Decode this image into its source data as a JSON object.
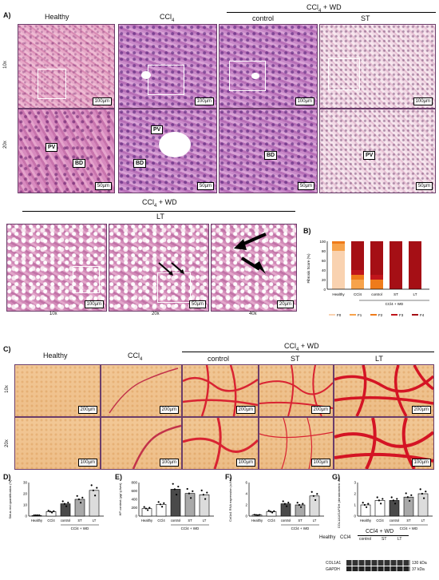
{
  "panelA": {
    "label": "A)",
    "col_headers": [
      "Healthy",
      "CCl",
      "control",
      "ST"
    ],
    "ccl_sub": "4",
    "wd_group": "CCl",
    "wd_suffix": " + WD",
    "row_labels": [
      "10x",
      "20x"
    ],
    "scalebars_10x": [
      "100µm",
      "100µm",
      "100µm",
      "100µm"
    ],
    "scalebars_20x": [
      "50µm",
      "50µm",
      "50µm",
      "50µm"
    ],
    "tags": {
      "pv": "PV",
      "bd": "BD"
    }
  },
  "panelLT": {
    "group": "CCl",
    "group_suffix": " + WD",
    "title": "LT",
    "mag_labels": [
      "10x",
      "20x",
      "40x"
    ],
    "scalebars": [
      "100µm",
      "50µm",
      "20µm"
    ]
  },
  "panelB": {
    "label": "B)",
    "ylabel": "Fibrosis Score (%)",
    "yticks": [
      "100",
      "80",
      "60",
      "40",
      "20",
      "0"
    ],
    "xlabels": [
      "Healthy",
      "CCl4",
      "control",
      "ST",
      "LT"
    ],
    "wd_label": "CCl4 + WD",
    "legend": [
      "F0",
      "F1",
      "F2",
      "F3",
      "F4"
    ],
    "colors": [
      "#f9d2b0",
      "#f7a34b",
      "#ef7b1a",
      "#c0151b",
      "#a50f15"
    ]
  },
  "panelC": {
    "label": "C)",
    "col_headers": [
      "Healthy",
      "CCl",
      "control",
      "ST",
      "LT"
    ],
    "wd_group": "CCl",
    "wd_suffix": " + WD",
    "row_labels": [
      "10x",
      "20x"
    ],
    "scalebars_10x": [
      "200µm",
      "200µm",
      "200µm",
      "200µm",
      "200µm"
    ],
    "scalebars_20x": [
      "100µm",
      "100µm",
      "100µm",
      "100µm",
      "100µm"
    ]
  },
  "panelD": {
    "label": "D)",
    "ylabel": "Sirius red quantification (%)",
    "xlabels": [
      "Healthy",
      "CCl4",
      "control",
      "ST",
      "LT"
    ],
    "group": "CCl4 + WD",
    "yticks": [
      "30",
      "20",
      "10",
      "0"
    ]
  },
  "panelE": {
    "label": "E)",
    "ylabel": "HP content (µg/ g liver)",
    "xlabels": [
      "Healthy",
      "CCl4",
      "control",
      "ST",
      "LT"
    ],
    "group": "CCl4 + WD",
    "yticks": [
      "800",
      "600",
      "400",
      "200",
      "0"
    ]
  },
  "panelF": {
    "label": "F)",
    "ylabel": "Col1a1 RNA expression (x-fold)",
    "xlabels": [
      "Healthy",
      "CCl4",
      "control",
      "ST",
      "LT"
    ],
    "group": "CCl4 + WD",
    "yticks": [
      "6",
      "4",
      "2",
      "0"
    ]
  },
  "panelG": {
    "label": "G)",
    "ylabel": "COL1A1/GAPDH (densitometric units %)",
    "xlabels": [
      "Healthy",
      "CCl4",
      "control",
      "ST",
      "LT"
    ],
    "group": "CCl4 + WD",
    "yticks": [
      "3",
      "2",
      "1",
      "0"
    ],
    "blot_rows": [
      "COL1A1",
      "GAPDH"
    ],
    "blot_kda": [
      "130 kDa",
      "37 kDa"
    ]
  },
  "chart_data": [
    {
      "type": "bar",
      "title": "B) Fibrosis Score",
      "categories": [
        "Healthy",
        "CCl4",
        "control",
        "ST",
        "LT"
      ],
      "ylabel": "Fibrosis Score (%)",
      "ylim": [
        0,
        100
      ],
      "series": [
        {
          "name": "F0",
          "values": [
            80,
            0,
            0,
            0,
            0
          ]
        },
        {
          "name": "F1",
          "values": [
            15,
            20,
            0,
            0,
            0
          ]
        },
        {
          "name": "F2",
          "values": [
            5,
            10,
            20,
            0,
            0
          ]
        },
        {
          "name": "F3",
          "values": [
            0,
            10,
            10,
            0,
            0
          ]
        },
        {
          "name": "F4",
          "values": [
            0,
            60,
            70,
            100,
            100
          ]
        }
      ]
    },
    {
      "type": "bar",
      "title": "D)",
      "categories": [
        "Healthy",
        "CCl4",
        "control",
        "ST",
        "LT"
      ],
      "ylabel": "Sirius red quantification (%)",
      "ylim": [
        0,
        30
      ],
      "values": [
        0.5,
        4,
        11,
        15,
        23
      ]
    },
    {
      "type": "bar",
      "title": "E)",
      "categories": [
        "Healthy",
        "CCl4",
        "control",
        "ST",
        "LT"
      ],
      "ylabel": "HP content (µg/ g liver)",
      "ylim": [
        0,
        800
      ],
      "values": [
        180,
        280,
        640,
        540,
        510
      ]
    },
    {
      "type": "bar",
      "title": "F)",
      "categories": [
        "Healthy",
        "CCl4",
        "control",
        "ST",
        "LT"
      ],
      "ylabel": "Col1a1 RNA expression (x-fold)",
      "ylim": [
        0,
        6
      ],
      "values": [
        0.2,
        0.8,
        2.2,
        2.0,
        3.6
      ]
    },
    {
      "type": "bar",
      "title": "G)",
      "categories": [
        "Healthy",
        "CCl4",
        "control",
        "ST",
        "LT"
      ],
      "ylabel": "COL1A1/GAPDH (densitometric units %)",
      "ylim": [
        0,
        3
      ],
      "values": [
        1.0,
        1.4,
        1.4,
        1.7,
        2.0
      ]
    }
  ]
}
